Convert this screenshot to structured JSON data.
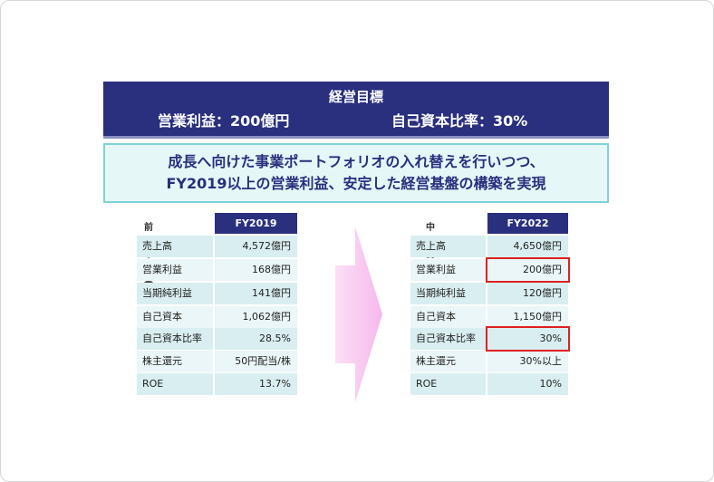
{
  "banner": {
    "title": "経営目標",
    "goal_profit": "営業利益：200億円",
    "goal_ratio": "自己資本比率：30%"
  },
  "message": {
    "line1": "成長へ向けた事業ポートフォリオの入れ替えを行いつつ、",
    "line2": "FY2019以上の営業利益、安定した経営基盤の構築を実現"
  },
  "left_table": {
    "header_label": "前期中計実績",
    "header_year": "FY2019",
    "rows": [
      {
        "label": "売上高",
        "value": "4,572億円"
      },
      {
        "label": "営業利益",
        "value": "168億円"
      },
      {
        "label": "当期純利益",
        "value": "141億円"
      },
      {
        "label": "自己資本",
        "value": "1,062億円"
      },
      {
        "label": "自己資本比率",
        "value": "28.5%"
      },
      {
        "label": "株主還元",
        "value": "50円配当/株"
      },
      {
        "label": "ROE",
        "value": "13.7%"
      }
    ]
  },
  "right_table": {
    "header_label": "中計目標",
    "header_year": "FY2022",
    "rows": [
      {
        "label": "売上高",
        "value": "4,650億円"
      },
      {
        "label": "営業利益",
        "value": "200億円"
      },
      {
        "label": "当期純利益",
        "value": "120億円"
      },
      {
        "label": "自己資本",
        "value": "1,150億円"
      },
      {
        "label": "自己資本比率",
        "value": "30%"
      },
      {
        "label": "株主還元",
        "value": "30%以上"
      },
      {
        "label": "ROE",
        "value": "10%"
      }
    ]
  },
  "colors": {
    "banner": "#2a2f7e",
    "message_bg": "#e6f7f8",
    "message_border": "#7fd3d6",
    "row_bg": "#d9eef0",
    "highlight": "#e02020",
    "arrow": "#f9c8f0"
  }
}
